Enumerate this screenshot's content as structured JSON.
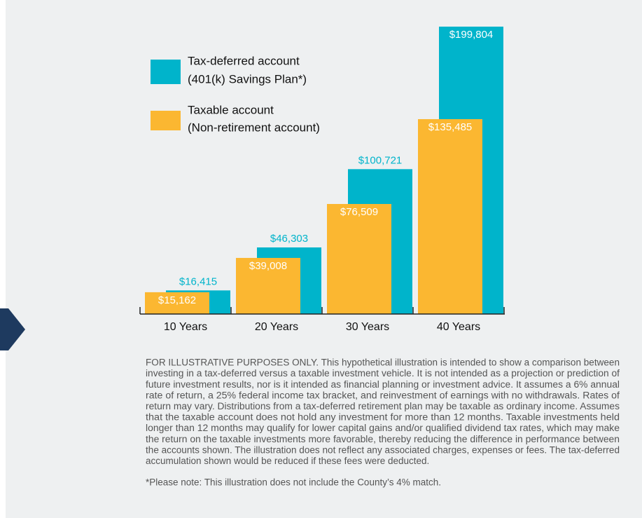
{
  "chart_data": {
    "type": "bar",
    "categories": [
      "10 Years",
      "20 Years",
      "30 Years",
      "40 Years"
    ],
    "series": [
      {
        "name": [
          "Tax-deferred account",
          "(401(k) Savings Plan*)"
        ],
        "color": "#00b4cb",
        "values": [
          16415,
          46303,
          100721,
          199804
        ],
        "value_labels": [
          "$16,415",
          "$46,303",
          "$100,721",
          "$199,804"
        ]
      },
      {
        "name": [
          "Taxable account",
          "(Non-retirement account)"
        ],
        "color": "#fbb731",
        "values": [
          15162,
          39008,
          76509,
          135485
        ],
        "value_labels": [
          "$15,162",
          "$39,008",
          "$76,509",
          "$135,485"
        ]
      }
    ],
    "footnote": [
      "FOR ILLUSTRATIVE PURPOSES ONLY. This hypothetical illustration is intended to show a comparison between",
      "investing in a tax-deferred versus a taxable investment vehicle. It is not intended as a projection or prediction of",
      "future investment results, nor is it intended as financial planning or investment advice. It assumes a 6% annual",
      "rate of return, a 25% federal income tax bracket, and reinvestment of earnings with no withdrawals. Rates of",
      "return may vary. Distributions from a tax-deferred retirement plan may be taxable as ordinary income. Assumes",
      "that the taxable account does not hold any investment for more than 12 months. Taxable investments held",
      "longer than 12 months may qualify for lower capital gains and/or qualified dividend tax rates, which may make",
      "the return on the taxable investments more favorable, thereby reducing the difference in performance between",
      "the accounts shown. The illustration does not reflect any associated charges, expenses or fees. The tax-deferred",
      "accumulation shown would be reduced if these fees were deducted."
    ],
    "note": "*Please note: This illustration does not include the County’s 4% match."
  }
}
